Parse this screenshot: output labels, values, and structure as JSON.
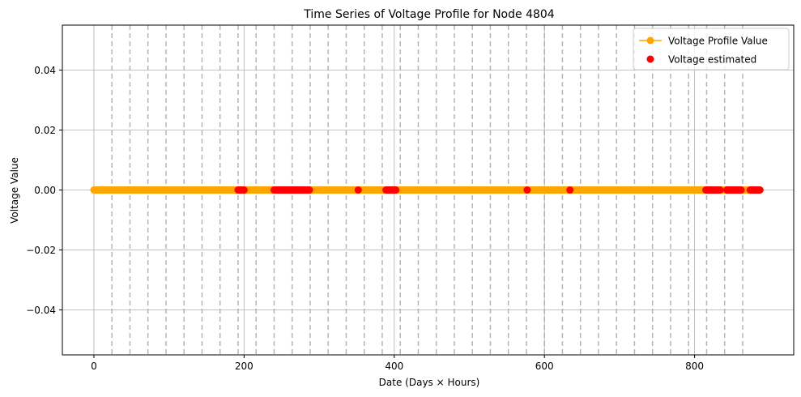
{
  "chart_data": {
    "type": "line",
    "title": "Time Series of Voltage Profile for Node 4804",
    "xlabel": "Date (Days × Hours)",
    "ylabel": "Voltage Value",
    "xlim": [
      -42,
      932
    ],
    "ylim": [
      -0.055,
      0.055
    ],
    "xticks": [
      0,
      200,
      400,
      600,
      800
    ],
    "xtick_labels": [
      "0",
      "200",
      "400",
      "600",
      "800"
    ],
    "yticks": [
      -0.04,
      -0.02,
      0.0,
      0.02,
      0.04
    ],
    "ytick_labels": [
      "−0.04",
      "−0.02",
      "0.00",
      "0.02",
      "0.04"
    ],
    "grid": true,
    "legend_position": "top-right",
    "day_boundaries": [
      24,
      48,
      72,
      96,
      120,
      144,
      168,
      192,
      216,
      240,
      264,
      288,
      312,
      336,
      360,
      384,
      408,
      432,
      456,
      480,
      504,
      528,
      552,
      576,
      600,
      624,
      648,
      672,
      696,
      720,
      744,
      768,
      792,
      816,
      840,
      864
    ],
    "series": [
      {
        "name": "Voltage Profile Value",
        "kind": "line-marker",
        "color": "#ffa500",
        "x_start": 0,
        "x_end": 887,
        "x_step": 1,
        "value": 0.0
      },
      {
        "name": "Voltage estimated",
        "kind": "scatter",
        "color": "#ff0000",
        "x": [
          192,
          193,
          194,
          195,
          196,
          197,
          198,
          199,
          200,
          240,
          241,
          242,
          243,
          244,
          245,
          246,
          247,
          248,
          249,
          250,
          251,
          252,
          253,
          254,
          255,
          256,
          257,
          258,
          259,
          260,
          261,
          262,
          263,
          264,
          265,
          266,
          267,
          268,
          269,
          270,
          271,
          272,
          273,
          274,
          275,
          276,
          277,
          278,
          279,
          280,
          281,
          282,
          283,
          284,
          285,
          286,
          287,
          352,
          389,
          390,
          391,
          392,
          393,
          394,
          395,
          396,
          397,
          398,
          399,
          400,
          401,
          402,
          577,
          634,
          815,
          816,
          817,
          818,
          819,
          820,
          821,
          822,
          823,
          824,
          825,
          826,
          827,
          828,
          829,
          830,
          831,
          832,
          833,
          834,
          843,
          844,
          845,
          846,
          847,
          848,
          849,
          850,
          851,
          852,
          853,
          854,
          855,
          856,
          857,
          858,
          859,
          860,
          861,
          862,
          874,
          875,
          876,
          877,
          878,
          879,
          880,
          881,
          882,
          883,
          884,
          885,
          886,
          887
        ],
        "value": 0.0
      }
    ]
  }
}
